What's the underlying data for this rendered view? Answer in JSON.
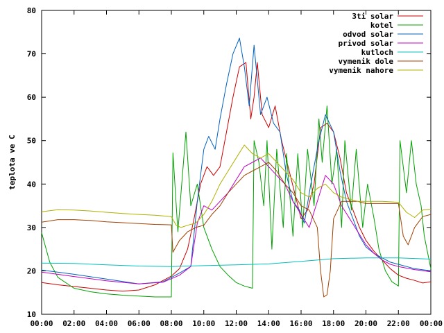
{
  "chart_data": {
    "type": "line",
    "title": "",
    "xlabel": "",
    "ylabel": "teplota ve C",
    "xlim": [
      0,
      24
    ],
    "ylim": [
      10,
      80
    ],
    "x_ticks": [
      "00:00",
      "02:00",
      "04:00",
      "06:00",
      "08:00",
      "10:00",
      "12:00",
      "14:00",
      "16:00",
      "18:00",
      "20:00",
      "22:00",
      "00:00"
    ],
    "y_ticks": [
      10,
      20,
      30,
      40,
      50,
      60,
      70,
      80
    ],
    "grid": false,
    "legend_position": "top-right",
    "series": [
      {
        "name": "3ti solar",
        "color": "#cc0000",
        "points": [
          [
            0,
            17.3
          ],
          [
            1,
            16.8
          ],
          [
            2,
            16.4
          ],
          [
            3,
            16.0
          ],
          [
            4,
            15.6
          ],
          [
            5,
            15.3
          ],
          [
            6,
            15.6
          ],
          [
            7,
            16.8
          ],
          [
            8,
            18.8
          ],
          [
            8.5,
            20.5
          ],
          [
            9,
            25
          ],
          [
            9.4,
            32
          ],
          [
            9.8,
            40
          ],
          [
            10.2,
            44
          ],
          [
            10.6,
            42
          ],
          [
            11,
            44
          ],
          [
            11.4,
            52
          ],
          [
            11.8,
            60
          ],
          [
            12.2,
            67
          ],
          [
            12.6,
            68
          ],
          [
            12.9,
            55
          ],
          [
            13.1,
            60
          ],
          [
            13.3,
            68
          ],
          [
            13.6,
            56
          ],
          [
            14,
            53
          ],
          [
            14.4,
            58
          ],
          [
            14.8,
            50
          ],
          [
            15.2,
            44
          ],
          [
            15.6,
            38
          ],
          [
            16,
            32
          ],
          [
            16.4,
            34
          ],
          [
            16.8,
            40
          ],
          [
            17.2,
            53
          ],
          [
            17.6,
            54
          ],
          [
            18,
            52
          ],
          [
            18.4,
            46
          ],
          [
            18.8,
            38
          ],
          [
            19.2,
            34
          ],
          [
            19.6,
            30
          ],
          [
            20,
            27
          ],
          [
            20.5,
            24.5
          ],
          [
            21,
            22.5
          ],
          [
            21.5,
            20.5
          ],
          [
            22,
            19
          ],
          [
            22.5,
            18.3
          ],
          [
            23,
            17.8
          ],
          [
            23.5,
            17.2
          ],
          [
            24,
            17.5
          ]
        ]
      },
      {
        "name": "kotel",
        "color": "#00a000",
        "points": [
          [
            0,
            28.8
          ],
          [
            0.5,
            22
          ],
          [
            1,
            18.5
          ],
          [
            2,
            16
          ],
          [
            3,
            15.2
          ],
          [
            4,
            14.7
          ],
          [
            5,
            14.4
          ],
          [
            6,
            14.2
          ],
          [
            7,
            14
          ],
          [
            8,
            14
          ],
          [
            8.1,
            47.2
          ],
          [
            8.4,
            29
          ],
          [
            8.9,
            52
          ],
          [
            9.2,
            35
          ],
          [
            9.6,
            40
          ],
          [
            10,
            30
          ],
          [
            10.5,
            25
          ],
          [
            11,
            21
          ],
          [
            11.5,
            19
          ],
          [
            12,
            17.3
          ],
          [
            12.5,
            16.5
          ],
          [
            13,
            16
          ],
          [
            13.1,
            50
          ],
          [
            13.4,
            45
          ],
          [
            13.7,
            35
          ],
          [
            13.9,
            50
          ],
          [
            14.2,
            25
          ],
          [
            14.5,
            48
          ],
          [
            14.9,
            30
          ],
          [
            15.1,
            47
          ],
          [
            15.5,
            28
          ],
          [
            15.8,
            47
          ],
          [
            16.1,
            30
          ],
          [
            16.4,
            48
          ],
          [
            16.8,
            35
          ],
          [
            17.1,
            55
          ],
          [
            17.3,
            45
          ],
          [
            17.6,
            58
          ],
          [
            17.9,
            40
          ],
          [
            18.2,
            48
          ],
          [
            18.5,
            30
          ],
          [
            18.7,
            50
          ],
          [
            19.1,
            34
          ],
          [
            19.4,
            48
          ],
          [
            19.8,
            30
          ],
          [
            20.1,
            40
          ],
          [
            20.5,
            32
          ],
          [
            20.8,
            25
          ],
          [
            21.2,
            20
          ],
          [
            21.6,
            17.5
          ],
          [
            22,
            16.5
          ],
          [
            22.1,
            50
          ],
          [
            22.5,
            38
          ],
          [
            22.8,
            50
          ],
          [
            23.1,
            40
          ],
          [
            23.4,
            35
          ],
          [
            23.6,
            28
          ],
          [
            24,
            20.5
          ]
        ]
      },
      {
        "name": "odvod solar",
        "color": "#0060c0",
        "points": [
          [
            0,
            20.2
          ],
          [
            2,
            19.2
          ],
          [
            4,
            18.1
          ],
          [
            6,
            17
          ],
          [
            7.5,
            17.5
          ],
          [
            8.5,
            19.5
          ],
          [
            9.2,
            21
          ],
          [
            9.6,
            36
          ],
          [
            10,
            48
          ],
          [
            10.3,
            51
          ],
          [
            10.7,
            48
          ],
          [
            11,
            55
          ],
          [
            11.4,
            63
          ],
          [
            11.8,
            70
          ],
          [
            12.2,
            73.6
          ],
          [
            12.5,
            67
          ],
          [
            12.8,
            58
          ],
          [
            13.1,
            72
          ],
          [
            13.5,
            56
          ],
          [
            13.9,
            60
          ],
          [
            14.3,
            54
          ],
          [
            14.7,
            52
          ],
          [
            15.1,
            42
          ],
          [
            15.5,
            36
          ],
          [
            15.9,
            34
          ],
          [
            16.2,
            31
          ],
          [
            16.6,
            40
          ],
          [
            17.1,
            50
          ],
          [
            17.5,
            56
          ],
          [
            18,
            52
          ],
          [
            18.4,
            43
          ],
          [
            18.8,
            36
          ],
          [
            19.2,
            32
          ],
          [
            19.6,
            28
          ],
          [
            20,
            25.5
          ],
          [
            20.5,
            24
          ],
          [
            21,
            23
          ],
          [
            21.5,
            22
          ],
          [
            22,
            21.5
          ],
          [
            23,
            20.5
          ],
          [
            24,
            20
          ]
        ]
      },
      {
        "name": "privod solar",
        "color": "#c000c0",
        "points": [
          [
            0,
            19.7
          ],
          [
            2,
            18.7
          ],
          [
            4,
            17.7
          ],
          [
            6,
            17
          ],
          [
            7.5,
            17.4
          ],
          [
            8.5,
            19
          ],
          [
            9.2,
            21
          ],
          [
            9.6,
            31
          ],
          [
            10,
            35
          ],
          [
            10.5,
            34
          ],
          [
            11,
            36
          ],
          [
            11.5,
            38
          ],
          [
            12,
            41
          ],
          [
            12.5,
            44
          ],
          [
            13,
            45
          ],
          [
            13.5,
            46
          ],
          [
            14,
            44
          ],
          [
            14.5,
            42
          ],
          [
            15,
            40
          ],
          [
            15.5,
            36
          ],
          [
            16,
            33
          ],
          [
            16.5,
            30
          ],
          [
            17,
            36
          ],
          [
            17.5,
            42
          ],
          [
            18,
            40
          ],
          [
            18.5,
            35
          ],
          [
            19,
            32
          ],
          [
            19.5,
            29
          ],
          [
            20,
            26
          ],
          [
            20.5,
            24
          ],
          [
            21,
            22.5
          ],
          [
            21.5,
            21.5
          ],
          [
            22,
            21
          ],
          [
            23,
            20.3
          ],
          [
            24,
            19.8
          ]
        ]
      },
      {
        "name": "kutloch",
        "color": "#00c0c0",
        "points": [
          [
            0,
            21.8
          ],
          [
            2,
            21.7
          ],
          [
            4,
            21.4
          ],
          [
            6,
            21.1
          ],
          [
            8,
            21
          ],
          [
            10,
            21.2
          ],
          [
            12,
            21.4
          ],
          [
            14,
            21.6
          ],
          [
            16,
            22.2
          ],
          [
            18,
            22.8
          ],
          [
            20,
            23
          ],
          [
            22,
            23
          ],
          [
            24,
            22.7
          ]
        ]
      },
      {
        "name": "vymenik dole",
        "color": "#a04000",
        "points": [
          [
            0,
            31.2
          ],
          [
            1,
            31.8
          ],
          [
            2,
            31.8
          ],
          [
            3,
            31.6
          ],
          [
            4,
            31.3
          ],
          [
            5,
            31.1
          ],
          [
            6,
            30.9
          ],
          [
            7,
            30.7
          ],
          [
            8,
            30.6
          ],
          [
            8.1,
            24.3
          ],
          [
            8.5,
            27
          ],
          [
            9,
            29
          ],
          [
            9.5,
            30
          ],
          [
            10,
            30.5
          ],
          [
            10.5,
            33
          ],
          [
            11,
            35
          ],
          [
            11.5,
            38
          ],
          [
            12,
            40
          ],
          [
            12.5,
            42
          ],
          [
            13,
            43
          ],
          [
            13.5,
            44
          ],
          [
            14,
            45
          ],
          [
            14.5,
            43
          ],
          [
            15,
            40
          ],
          [
            15.5,
            38
          ],
          [
            16,
            35
          ],
          [
            16.5,
            34
          ],
          [
            17,
            30
          ],
          [
            17.2,
            20
          ],
          [
            17.4,
            14
          ],
          [
            17.6,
            14.5
          ],
          [
            17.8,
            20
          ],
          [
            18,
            32
          ],
          [
            18.5,
            36
          ],
          [
            19,
            36
          ],
          [
            19.5,
            36
          ],
          [
            20,
            35.5
          ],
          [
            21,
            35.5
          ],
          [
            22,
            35.5
          ],
          [
            22.3,
            28
          ],
          [
            22.6,
            26
          ],
          [
            23,
            30
          ],
          [
            23.5,
            32.5
          ],
          [
            24,
            33
          ]
        ]
      },
      {
        "name": "vymenik nahore",
        "color": "#b0b000",
        "points": [
          [
            0,
            33.6
          ],
          [
            1,
            34.1
          ],
          [
            2,
            34
          ],
          [
            3,
            33.8
          ],
          [
            4,
            33.5
          ],
          [
            5,
            33.2
          ],
          [
            6,
            33
          ],
          [
            7,
            32.8
          ],
          [
            8,
            32.5
          ],
          [
            8.3,
            30.5
          ],
          [
            8.6,
            30
          ],
          [
            9,
            30.5
          ],
          [
            9.5,
            31
          ],
          [
            10,
            33
          ],
          [
            10.5,
            36
          ],
          [
            11,
            40
          ],
          [
            11.5,
            43
          ],
          [
            12,
            46
          ],
          [
            12.5,
            49
          ],
          [
            13,
            47
          ],
          [
            13.5,
            46
          ],
          [
            14,
            47
          ],
          [
            14.5,
            45
          ],
          [
            15,
            43
          ],
          [
            15.5,
            41
          ],
          [
            16,
            38
          ],
          [
            16.5,
            37
          ],
          [
            17,
            39
          ],
          [
            17.5,
            40
          ],
          [
            18,
            38
          ],
          [
            18.5,
            37
          ],
          [
            19,
            36.5
          ],
          [
            19.5,
            36
          ],
          [
            20,
            36
          ],
          [
            21,
            36
          ],
          [
            22,
            35.8
          ],
          [
            22.5,
            33.5
          ],
          [
            23,
            32.3
          ],
          [
            23.5,
            34
          ],
          [
            24,
            34.2
          ]
        ]
      }
    ]
  }
}
